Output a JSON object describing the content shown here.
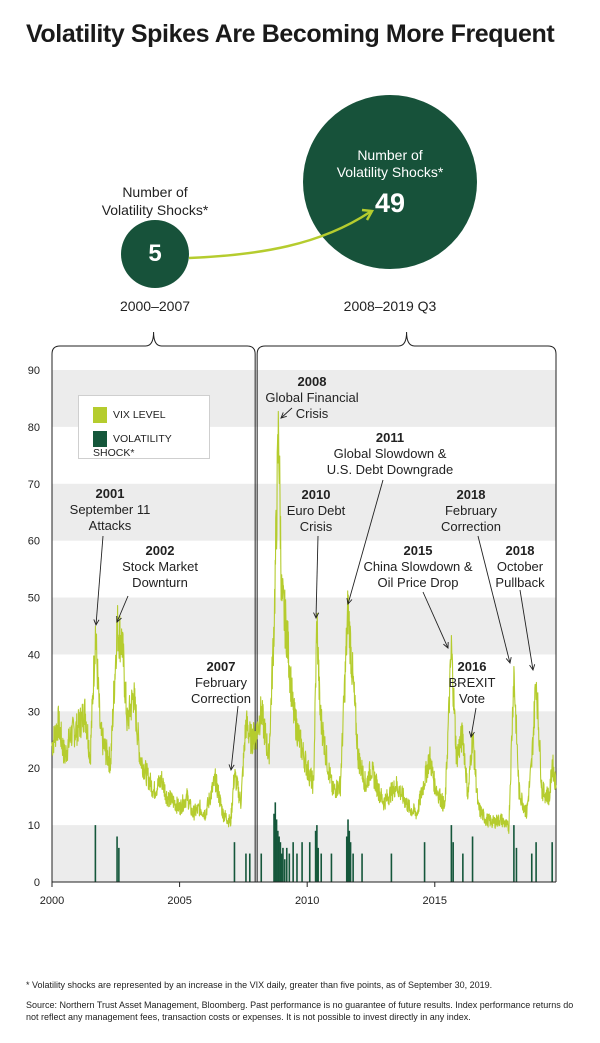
{
  "title": "Volatility Spikes Are Becoming More Frequent",
  "comparison": {
    "left": {
      "label_lines": [
        "Number of",
        "Volatility Shocks*"
      ],
      "value": "5",
      "period": "2000–2007"
    },
    "right": {
      "label_lines": [
        "Number of",
        "Volatility Shocks*"
      ],
      "value": "49",
      "period": "2008–2019 Q3"
    }
  },
  "colors": {
    "bubble": "#17523a",
    "vix": "#b5cc2e",
    "shock": "#15573b",
    "band": "#ececec"
  },
  "legend": {
    "vix_label": "VIX LEVEL",
    "shock_label": "VOLATILITY SHOCK*"
  },
  "annotations": [
    {
      "year": "2001",
      "lines": [
        "September 11",
        "Attacks"
      ]
    },
    {
      "year": "2002",
      "lines": [
        "Stock Market",
        "Downturn"
      ]
    },
    {
      "year": "2007",
      "lines": [
        "February",
        "Correction"
      ]
    },
    {
      "year": "2008",
      "lines": [
        "Global Financial",
        "Crisis"
      ]
    },
    {
      "year": "2010",
      "lines": [
        "Euro Debt",
        "Crisis"
      ]
    },
    {
      "year": "2011",
      "lines": [
        "Global Slowdown &",
        "U.S. Debt Downgrade"
      ]
    },
    {
      "year": "2015",
      "lines": [
        "China Slowdown &",
        "Oil Price Drop"
      ]
    },
    {
      "year": "2016",
      "lines": [
        "BREXIT",
        "Vote"
      ]
    },
    {
      "year": "2018",
      "lines": [
        "February",
        "Correction"
      ]
    },
    {
      "year": "2018",
      "lines": [
        "October",
        "Pullback"
      ]
    }
  ],
  "chart_data": {
    "type": "line",
    "xlim": [
      2000,
      2019.75
    ],
    "ylim": [
      0,
      90
    ],
    "y_ticks": [
      "0",
      "10",
      "20",
      "30",
      "40",
      "50",
      "60",
      "70",
      "80",
      "90"
    ],
    "x_ticks": [
      "2000",
      "2005",
      "2010",
      "2015"
    ],
    "grid": "alternating horizontal bands",
    "legend_position": "top-left",
    "series": [
      {
        "name": "VIX LEVEL",
        "points": [
          [
            2000.0,
            24
          ],
          [
            2000.25,
            28
          ],
          [
            2000.5,
            22
          ],
          [
            2000.75,
            26
          ],
          [
            2001.0,
            27
          ],
          [
            2001.3,
            30
          ],
          [
            2001.5,
            22
          ],
          [
            2001.7,
            44
          ],
          [
            2001.9,
            26
          ],
          [
            2002.1,
            23
          ],
          [
            2002.3,
            21
          ],
          [
            2002.55,
            45
          ],
          [
            2002.75,
            42
          ],
          [
            2002.95,
            28
          ],
          [
            2003.2,
            33
          ],
          [
            2003.45,
            22
          ],
          [
            2003.7,
            19
          ],
          [
            2004.0,
            16
          ],
          [
            2004.3,
            18
          ],
          [
            2004.5,
            15
          ],
          [
            2004.8,
            14
          ],
          [
            2005.0,
            13
          ],
          [
            2005.3,
            15
          ],
          [
            2005.5,
            12
          ],
          [
            2005.8,
            13
          ],
          [
            2006.0,
            12
          ],
          [
            2006.4,
            18
          ],
          [
            2006.7,
            12
          ],
          [
            2007.0,
            10.5
          ],
          [
            2007.15,
            19
          ],
          [
            2007.4,
            14
          ],
          [
            2007.6,
            28
          ],
          [
            2007.8,
            25
          ],
          [
            2008.0,
            26
          ],
          [
            2008.2,
            30
          ],
          [
            2008.5,
            22
          ],
          [
            2008.7,
            45
          ],
          [
            2008.88,
            80
          ],
          [
            2009.0,
            50
          ],
          [
            2009.2,
            44
          ],
          [
            2009.45,
            30
          ],
          [
            2009.7,
            25
          ],
          [
            2010.0,
            20
          ],
          [
            2010.25,
            17
          ],
          [
            2010.38,
            46
          ],
          [
            2010.5,
            30
          ],
          [
            2010.75,
            22
          ],
          [
            2011.0,
            16
          ],
          [
            2011.3,
            17
          ],
          [
            2011.6,
            48
          ],
          [
            2011.8,
            35
          ],
          [
            2012.0,
            22
          ],
          [
            2012.3,
            17
          ],
          [
            2012.5,
            20
          ],
          [
            2012.8,
            16
          ],
          [
            2013.0,
            14
          ],
          [
            2013.5,
            17
          ],
          [
            2014.0,
            13
          ],
          [
            2014.3,
            12
          ],
          [
            2014.8,
            22
          ],
          [
            2015.0,
            17
          ],
          [
            2015.4,
            13
          ],
          [
            2015.65,
            41
          ],
          [
            2015.85,
            22
          ],
          [
            2016.1,
            26
          ],
          [
            2016.3,
            15
          ],
          [
            2016.48,
            26
          ],
          [
            2016.7,
            13
          ],
          [
            2017.0,
            11
          ],
          [
            2017.3,
            10.5
          ],
          [
            2017.6,
            11
          ],
          [
            2017.9,
            9.5
          ],
          [
            2018.1,
            37
          ],
          [
            2018.3,
            16
          ],
          [
            2018.6,
            12
          ],
          [
            2018.8,
            21
          ],
          [
            2018.97,
            36
          ],
          [
            2019.2,
            16
          ],
          [
            2019.5,
            15
          ],
          [
            2019.6,
            21
          ],
          [
            2019.75,
            17
          ]
        ]
      },
      {
        "name": "VOLATILITY SHOCK*",
        "points": [
          [
            2001.7,
            10
          ],
          [
            2002.55,
            8
          ],
          [
            2002.62,
            6
          ],
          [
            2007.15,
            7
          ],
          [
            2007.6,
            5
          ],
          [
            2007.75,
            5
          ],
          [
            2008.2,
            5
          ],
          [
            2008.7,
            12
          ],
          [
            2008.75,
            14
          ],
          [
            2008.8,
            11
          ],
          [
            2008.85,
            9
          ],
          [
            2008.9,
            8
          ],
          [
            2008.95,
            7
          ],
          [
            2009.0,
            5
          ],
          [
            2009.05,
            6
          ],
          [
            2009.12,
            4
          ],
          [
            2009.2,
            6
          ],
          [
            2009.3,
            5
          ],
          [
            2009.45,
            7
          ],
          [
            2009.6,
            5
          ],
          [
            2009.8,
            7
          ],
          [
            2010.1,
            7
          ],
          [
            2010.33,
            9
          ],
          [
            2010.38,
            10
          ],
          [
            2010.43,
            6
          ],
          [
            2010.55,
            5
          ],
          [
            2010.95,
            5
          ],
          [
            2011.55,
            8
          ],
          [
            2011.6,
            11
          ],
          [
            2011.65,
            9
          ],
          [
            2011.7,
            7
          ],
          [
            2011.8,
            5
          ],
          [
            2012.15,
            5
          ],
          [
            2013.3,
            5
          ],
          [
            2014.6,
            7
          ],
          [
            2015.65,
            10
          ],
          [
            2015.72,
            7
          ],
          [
            2016.1,
            5
          ],
          [
            2016.48,
            8
          ],
          [
            2018.1,
            10
          ],
          [
            2018.2,
            6
          ],
          [
            2018.8,
            5
          ],
          [
            2018.97,
            7
          ],
          [
            2019.6,
            7
          ]
        ]
      }
    ]
  },
  "footnote": "* Volatility shocks are represented by an increase in the VIX daily, greater than five points, as of September 30, 2019.",
  "source": "Source: Northern Trust Asset Management, Bloomberg. Past performance is no guarantee of future results. Index performance returns do not reflect any management fees, transaction costs or expenses. It is not possible to invest directly in any index."
}
